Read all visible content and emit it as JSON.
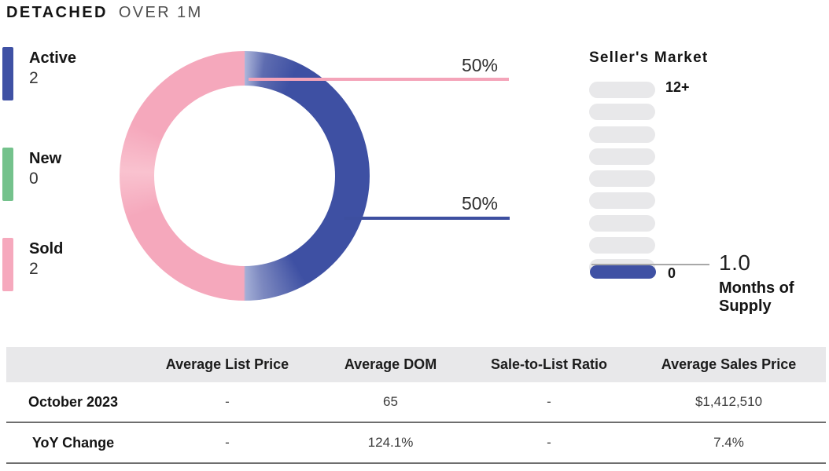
{
  "title": {
    "primary": "DETACHED",
    "secondary": "OVER 1M"
  },
  "colors": {
    "active_blue": "#3f51a4",
    "new_green": "#74c28c",
    "sold_pink": "#f6a9bd",
    "donut_blue": "#3e50a3",
    "donut_pink": "#f5a8bc",
    "pill_gray": "#e8e8ea",
    "table_header_bg": "#e8e8ea",
    "row_separator": "#6e6e6e"
  },
  "legend": [
    {
      "label": "Active",
      "value": "2",
      "color": "#3f51a4"
    },
    {
      "label": "New",
      "value": "0",
      "color": "#74c28c"
    },
    {
      "label": "Sold",
      "value": "2",
      "color": "#f6a9bd"
    }
  ],
  "chart_data": [
    {
      "type": "pie",
      "title": "Active vs Sold share",
      "labels": [
        "Active",
        "Sold"
      ],
      "values": [
        50,
        50
      ],
      "value_labels": [
        "50%",
        "50%"
      ],
      "colors": [
        "#3e50a3",
        "#f5a8bc"
      ],
      "donut": true,
      "legend_counts": {
        "Active": 2,
        "New": 0,
        "Sold": 2
      },
      "callouts": {
        "pink_label": "50%",
        "blue_label": "50%"
      }
    },
    {
      "type": "bar",
      "subtype": "segment-gauge",
      "title": "Seller's Market",
      "max_label": "12+",
      "min_label": "0",
      "segments_total": 10,
      "segments_filled": 1,
      "value": 1.0,
      "value_label": "1.0",
      "unit_label": "Months of Supply"
    },
    {
      "type": "table",
      "columns": [
        "",
        "Average List Price",
        "Average DOM",
        "Sale-to-List Ratio",
        "Average Sales Price"
      ],
      "rows": [
        {
          "label": "October 2023",
          "values": [
            "-",
            "65",
            "-",
            "$1,412,510"
          ]
        },
        {
          "label": "YoY Change",
          "values": [
            "-",
            "124.1%",
            "-",
            "7.4%"
          ]
        }
      ]
    }
  ],
  "gauge": {
    "title": "Seller's Market",
    "max_label": "12+",
    "min_label": "0",
    "value_label": "1.0",
    "unit_label_line1": "Months of",
    "unit_label_line2": "Supply"
  },
  "donut_callouts": {
    "pink": "50%",
    "blue": "50%"
  },
  "table": {
    "columns": [
      "",
      "Average List Price",
      "Average DOM",
      "Sale-to-List Ratio",
      "Average Sales Price"
    ],
    "rows": [
      {
        "label": "October 2023",
        "values": [
          "-",
          "65",
          "-",
          "$1,412,510"
        ]
      },
      {
        "label": "YoY Change",
        "values": [
          "-",
          "124.1%",
          "-",
          "7.4%"
        ]
      }
    ]
  }
}
